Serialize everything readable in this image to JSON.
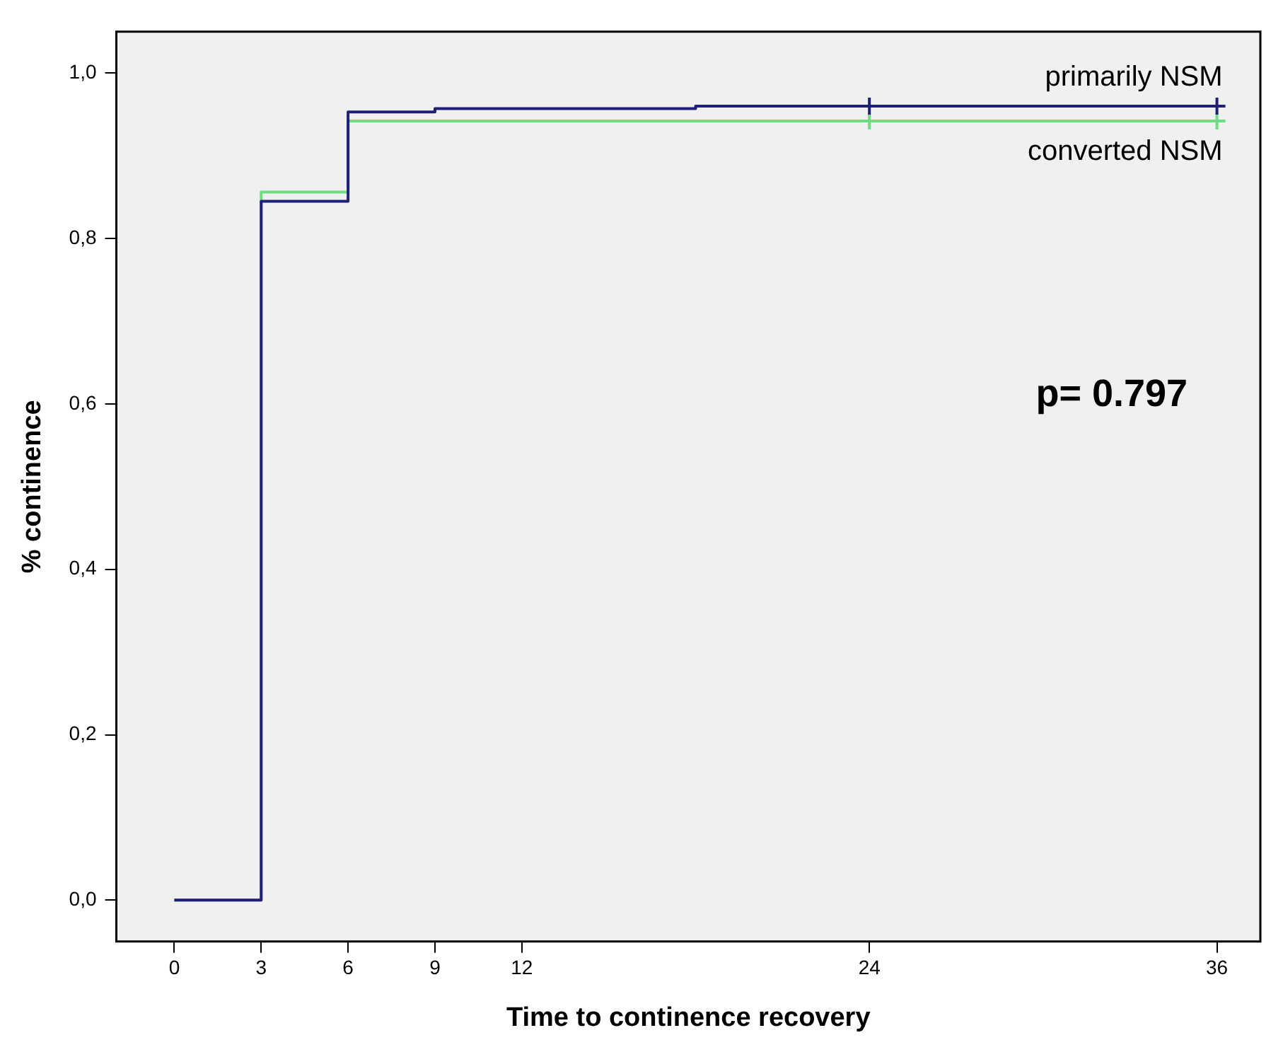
{
  "chart_data": {
    "type": "step",
    "xlabel": "Time to continence recovery",
    "ylabel": "% continence",
    "annotations": [
      "p= 0.797"
    ],
    "series": [
      {
        "name": "primarily NSM",
        "color": "#1f1f78",
        "x": [
          0,
          3,
          6,
          9,
          18,
          36
        ],
        "values": [
          0,
          0.845,
          0.953,
          0.957,
          0.96,
          0.96
        ]
      },
      {
        "name": "converted NSM",
        "color": "#6fdc7f",
        "x": [
          0,
          3,
          6,
          36
        ],
        "values": [
          0,
          0.856,
          0.942,
          0.942
        ]
      },
      {
        "type": "scatter",
        "marker": "cross",
        "color": "#1f1f78",
        "x": [
          24,
          36
        ],
        "values": [
          0.96,
          0.96
        ]
      },
      {
        "type": "scatter",
        "marker": "cross",
        "color": "#6fdc7f",
        "x": [
          24,
          36
        ],
        "values": [
          0.942,
          0.942
        ]
      }
    ],
    "xlim": [
      -2,
      37.5
    ],
    "xticks": [
      0,
      3,
      6,
      9,
      12,
      24,
      36
    ],
    "ylim": [
      -0.05,
      1.05
    ],
    "yticks": [
      {
        "value": 0,
        "label": "0,0"
      },
      {
        "value": 0.2,
        "label": "0,2"
      },
      {
        "value": 0.4,
        "label": "0,4"
      },
      {
        "value": 0.6,
        "label": "0,6"
      },
      {
        "value": 0.8,
        "label": "0,8"
      },
      {
        "value": 1,
        "label": "1,0"
      }
    ],
    "grid": false,
    "legend": false
  }
}
